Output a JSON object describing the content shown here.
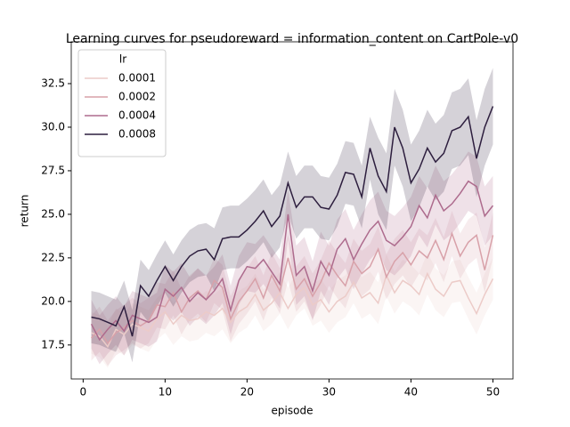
{
  "chart_data": {
    "type": "line",
    "title": "Learning curves for pseudoreward = information_content on CartPole-v0",
    "x_label": "episode",
    "y_label": "return",
    "legend_title": "lr",
    "legend_position": "upper left",
    "grid": false,
    "xlim": [
      -1.45,
      52.45
    ],
    "ylim": [
      15.55,
      34.9
    ],
    "xticks": [
      0,
      10,
      20,
      30,
      40,
      50
    ],
    "yticks": [
      17.5,
      {
        "value": 20,
        "label": "20.0"
      },
      22.5,
      {
        "value": 25,
        "label": "25.0"
      },
      27.5,
      {
        "value": 30,
        "label": "30.0"
      },
      32.5
    ],
    "x": [
      1,
      2,
      3,
      4,
      5,
      6,
      7,
      8,
      9,
      10,
      11,
      12,
      13,
      14,
      15,
      16,
      17,
      18,
      19,
      20,
      21,
      22,
      23,
      24,
      25,
      26,
      27,
      28,
      29,
      30,
      31,
      32,
      33,
      34,
      35,
      36,
      37,
      38,
      39,
      40,
      41,
      42,
      43,
      44,
      45,
      46,
      47,
      48,
      49,
      50
    ],
    "series": [
      {
        "name": "0.0001",
        "color": "#eccbc8",
        "values": [
          18.2,
          18.0,
          17.4,
          18.4,
          18.1,
          18.7,
          18.5,
          18.3,
          19.0,
          19.4,
          18.7,
          19.2,
          18.9,
          19.0,
          19.4,
          19.2,
          19.6,
          18.8,
          19.4,
          19.7,
          20.4,
          19.5,
          19.9,
          20.5,
          19.6,
          20.4,
          20.8,
          19.8,
          20.1,
          19.4,
          20.0,
          20.3,
          21.1,
          20.2,
          20.5,
          19.9,
          21.5,
          20.5,
          21.2,
          20.9,
          20.4,
          21.6,
          20.7,
          20.3,
          21.1,
          21.2,
          20.2,
          19.3,
          20.4,
          21.3
        ],
        "lower": [
          17.0,
          16.8,
          16.2,
          17.2,
          16.9,
          17.5,
          17.3,
          17.1,
          17.8,
          18.2,
          17.5,
          18.0,
          17.7,
          17.8,
          18.2,
          18.0,
          18.4,
          17.6,
          18.2,
          18.5,
          19.2,
          18.3,
          18.7,
          19.3,
          18.4,
          19.2,
          19.6,
          18.6,
          18.9,
          18.2,
          18.8,
          19.1,
          19.9,
          19.0,
          19.3,
          18.7,
          20.3,
          19.3,
          20.0,
          19.7,
          19.2,
          20.4,
          19.5,
          19.1,
          19.9,
          20.0,
          19.0,
          18.1,
          19.2,
          20.1
        ],
        "upper": [
          19.4,
          19.2,
          18.6,
          19.6,
          19.3,
          19.9,
          19.7,
          19.5,
          20.2,
          20.6,
          19.9,
          20.4,
          20.1,
          20.2,
          20.6,
          20.4,
          20.8,
          20.0,
          20.6,
          20.9,
          21.6,
          20.7,
          21.1,
          21.7,
          20.8,
          21.6,
          22.0,
          21.0,
          21.3,
          20.6,
          21.2,
          21.5,
          22.3,
          21.4,
          21.7,
          21.1,
          22.7,
          21.7,
          22.4,
          22.1,
          21.6,
          22.8,
          21.9,
          21.5,
          22.3,
          22.4,
          21.4,
          20.5,
          21.6,
          22.5
        ]
      },
      {
        "name": "0.0002",
        "color": "#d8a1a9",
        "values": [
          17.9,
          18.4,
          17.6,
          18.2,
          18.5,
          18.9,
          18.6,
          18.9,
          19.8,
          19.7,
          20.5,
          19.4,
          20.2,
          20.6,
          20.1,
          21.2,
          20.8,
          19.0,
          20.0,
          20.6,
          21.3,
          20.2,
          21.5,
          20.6,
          22.5,
          20.7,
          21.3,
          20.3,
          21.1,
          22.2,
          21.5,
          20.9,
          22.3,
          21.6,
          22.0,
          23.0,
          21.4,
          22.3,
          22.8,
          22.1,
          22.9,
          22.5,
          23.5,
          22.4,
          23.9,
          22.6,
          23.4,
          23.8,
          21.8,
          23.8
        ],
        "lower": [
          16.6,
          17.1,
          16.3,
          16.9,
          17.2,
          17.6,
          17.3,
          17.6,
          18.5,
          18.4,
          19.2,
          18.1,
          18.9,
          19.3,
          18.8,
          19.9,
          19.5,
          17.7,
          18.7,
          19.3,
          20.0,
          18.9,
          20.2,
          19.3,
          21.2,
          19.4,
          20.0,
          19.0,
          19.8,
          20.9,
          20.2,
          19.6,
          21.0,
          20.3,
          20.7,
          21.7,
          20.1,
          21.0,
          21.5,
          20.8,
          21.6,
          21.2,
          22.2,
          21.1,
          22.6,
          21.3,
          22.1,
          22.5,
          20.5,
          22.5
        ],
        "upper": [
          19.2,
          19.7,
          18.9,
          19.5,
          19.8,
          20.2,
          19.9,
          20.2,
          21.1,
          21.0,
          21.8,
          20.7,
          21.5,
          21.9,
          21.4,
          22.5,
          22.1,
          20.3,
          21.3,
          21.9,
          22.6,
          21.5,
          22.8,
          21.9,
          23.8,
          22.0,
          22.6,
          21.6,
          22.4,
          23.5,
          22.8,
          22.2,
          23.6,
          22.9,
          23.3,
          24.3,
          22.7,
          23.6,
          24.1,
          23.4,
          24.2,
          23.8,
          24.8,
          23.7,
          25.2,
          23.9,
          24.7,
          25.1,
          23.1,
          25.1
        ]
      },
      {
        "name": "0.0004",
        "color": "#ad6b8d",
        "values": [
          18.7,
          17.8,
          18.4,
          18.9,
          18.3,
          19.2,
          19.0,
          18.8,
          19.1,
          20.7,
          20.3,
          20.8,
          20.0,
          20.5,
          20.1,
          20.6,
          21.3,
          19.5,
          21.2,
          22.0,
          21.9,
          22.4,
          21.7,
          21.0,
          25.0,
          21.5,
          22.0,
          20.6,
          22.3,
          21.5,
          23.0,
          23.6,
          22.4,
          23.3,
          24.1,
          24.6,
          23.5,
          23.2,
          23.7,
          24.3,
          25.5,
          24.8,
          26.1,
          25.2,
          25.6,
          26.2,
          26.9,
          26.6,
          24.9,
          25.5
        ],
        "lower": [
          17.3,
          16.4,
          17.0,
          17.5,
          16.9,
          17.8,
          17.6,
          17.4,
          17.7,
          19.3,
          18.9,
          19.4,
          18.6,
          19.1,
          18.7,
          19.2,
          19.9,
          18.1,
          19.8,
          20.6,
          20.5,
          21.0,
          20.3,
          19.6,
          23.6,
          19.8,
          20.3,
          18.9,
          20.6,
          19.8,
          21.3,
          21.9,
          20.7,
          21.6,
          22.4,
          22.9,
          21.8,
          21.5,
          22.0,
          22.6,
          23.8,
          23.1,
          24.4,
          23.5,
          23.9,
          24.5,
          25.2,
          24.9,
          23.2,
          23.8
        ],
        "upper": [
          20.1,
          19.2,
          19.8,
          20.3,
          19.7,
          20.6,
          20.4,
          20.2,
          20.5,
          22.1,
          21.7,
          22.2,
          21.4,
          21.9,
          21.5,
          22.0,
          22.7,
          20.9,
          22.6,
          23.4,
          23.3,
          23.8,
          23.1,
          22.4,
          26.4,
          23.2,
          23.7,
          22.3,
          24.0,
          23.2,
          24.7,
          25.3,
          24.1,
          25.0,
          25.8,
          26.3,
          25.2,
          24.9,
          25.4,
          26.0,
          27.2,
          26.5,
          27.8,
          26.9,
          27.3,
          27.9,
          28.6,
          28.3,
          26.6,
          27.2
        ]
      },
      {
        "name": "0.0008",
        "color": "#2d1e3e",
        "values": [
          19.1,
          19.0,
          18.8,
          18.6,
          19.7,
          18.0,
          20.9,
          20.3,
          21.2,
          22.0,
          21.2,
          22.0,
          22.6,
          22.9,
          23.0,
          22.4,
          23.6,
          23.7,
          23.7,
          24.1,
          24.6,
          25.2,
          24.3,
          24.9,
          26.8,
          25.4,
          26.0,
          26.0,
          25.4,
          25.3,
          26.1,
          27.4,
          27.3,
          26.0,
          28.8,
          27.2,
          26.3,
          30.0,
          28.8,
          26.8,
          27.6,
          28.8,
          28.0,
          28.5,
          29.8,
          30.0,
          30.6,
          28.2,
          30.0,
          31.2
        ],
        "lower": [
          17.6,
          17.5,
          17.3,
          17.1,
          18.2,
          16.5,
          19.4,
          18.8,
          19.7,
          20.5,
          19.7,
          20.5,
          21.1,
          21.4,
          21.5,
          20.6,
          21.8,
          21.9,
          21.9,
          22.3,
          22.8,
          23.4,
          22.5,
          23.1,
          25.0,
          23.6,
          24.2,
          24.2,
          23.6,
          23.5,
          24.3,
          25.6,
          25.5,
          24.2,
          27.0,
          25.0,
          24.1,
          27.8,
          26.6,
          24.6,
          25.4,
          26.6,
          25.8,
          26.3,
          27.6,
          27.8,
          28.4,
          26.0,
          27.8,
          29.0
        ],
        "upper": [
          20.6,
          20.5,
          20.3,
          20.1,
          21.2,
          19.5,
          22.4,
          21.8,
          22.7,
          23.5,
          22.7,
          23.5,
          24.1,
          24.4,
          24.5,
          24.2,
          25.4,
          25.5,
          25.5,
          25.9,
          26.4,
          27.0,
          26.1,
          26.7,
          28.6,
          27.2,
          27.8,
          27.8,
          27.2,
          27.1,
          27.9,
          29.2,
          29.1,
          27.8,
          30.6,
          29.4,
          28.5,
          32.2,
          31.0,
          29.0,
          29.8,
          31.0,
          30.2,
          30.7,
          32.0,
          32.2,
          32.8,
          30.4,
          32.2,
          33.4
        ]
      }
    ]
  }
}
